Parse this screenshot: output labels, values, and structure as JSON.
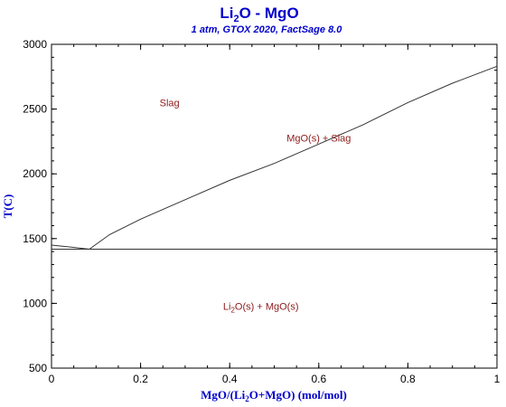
{
  "chart_data": {
    "type": "line",
    "title_main": "Li",
    "title_sub": "2",
    "title_rest": "O - MgO",
    "subtitle": "1 atm, GTOX 2020, FactSage 8.0",
    "xlabel_parts": [
      "MgO/(Li",
      "2",
      "O+MgO) (mol/mol)"
    ],
    "ylabel": "T(C)",
    "xlim": [
      0,
      1
    ],
    "ylim": [
      500,
      3000
    ],
    "x_ticks": [
      0,
      0.2,
      0.4,
      0.6,
      0.8,
      1
    ],
    "x_tick_labels": [
      "0",
      "0.2",
      "0.4",
      "0.6",
      "0.8",
      "1"
    ],
    "y_ticks": [
      500,
      1000,
      1500,
      2000,
      2500,
      3000
    ],
    "y_tick_labels": [
      "500",
      "1000",
      "1500",
      "2000",
      "2500",
      "3000"
    ],
    "series": [
      {
        "points": [
          [
            0,
            1450
          ],
          [
            0.04,
            1436
          ],
          [
            0.085,
            1418
          ]
        ]
      },
      {
        "points": [
          [
            0.085,
            1418
          ],
          [
            0.13,
            1530
          ],
          [
            0.2,
            1650
          ],
          [
            0.3,
            1800
          ],
          [
            0.4,
            1950
          ],
          [
            0.5,
            2080
          ],
          [
            0.6,
            2230
          ],
          [
            0.7,
            2380
          ],
          [
            0.8,
            2550
          ],
          [
            0.9,
            2700
          ],
          [
            1,
            2830
          ]
        ]
      },
      {
        "points": [
          [
            0,
            1418
          ],
          [
            1,
            1418
          ]
        ]
      }
    ],
    "region_labels": [
      {
        "text": "Slag",
        "x": 0.265,
        "y": 2520
      },
      {
        "text": "MgO(s) + Slag",
        "x": 0.6,
        "y": 2250
      },
      {
        "parts": [
          "Li",
          "2",
          "O(s) + MgO(s)"
        ],
        "x": 0.47,
        "y": 950
      }
    ],
    "grid": false,
    "colors": {
      "title": "#0000cc",
      "curve": "#333333",
      "region_text": "#8b1a1a"
    }
  }
}
